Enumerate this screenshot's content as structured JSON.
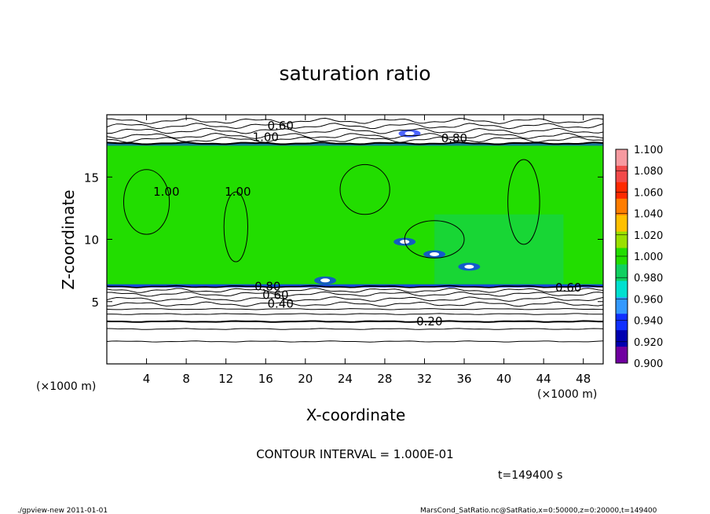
{
  "chart_data": {
    "type": "heatmap",
    "title": "saturation ratio",
    "xlabel": "X-coordinate",
    "ylabel": "Z-coordinate",
    "x_unit": "(×1000 m)",
    "y_unit": "(×1000 m)",
    "xlim": [
      0,
      50
    ],
    "ylim": [
      0,
      20
    ],
    "x_ticks": [
      "4",
      "8",
      "12",
      "16",
      "20",
      "24",
      "28",
      "32",
      "36",
      "40",
      "44",
      "48"
    ],
    "y_ticks": [
      "5",
      "10",
      "15"
    ],
    "colorbar": {
      "levels": [
        "1.100",
        "1.080",
        "1.060",
        "1.040",
        "1.020",
        "1.000",
        "0.980",
        "0.960",
        "0.940",
        "0.920",
        "0.900"
      ],
      "colors": [
        "#f79aa0",
        "#f24a4a",
        "#ff2a00",
        "#ff7d00",
        "#ffc000",
        "#9ae000",
        "#22dd00",
        "#10d060",
        "#00e0d0",
        "#3399ff",
        "#1030ff",
        "#0000b0",
        "#7000a0"
      ]
    },
    "cloud_layer": {
      "z_bottom": 6.2,
      "z_top": 17.7,
      "saturation": 1.0,
      "color": "#22dd00"
    },
    "contour_labels": [
      {
        "text": "0.60",
        "x": 17.5,
        "z": 18.8
      },
      {
        "text": "1.00",
        "x": 16.0,
        "z": 17.9
      },
      {
        "text": "0.80",
        "x": 35.0,
        "z": 17.8
      },
      {
        "text": "1.00",
        "x": 6.0,
        "z": 13.5
      },
      {
        "text": "1.00",
        "x": 13.2,
        "z": 13.5
      },
      {
        "text": "0.80",
        "x": 16.2,
        "z": 5.9
      },
      {
        "text": "0.60",
        "x": 17.0,
        "z": 5.2
      },
      {
        "text": "0.40",
        "x": 17.5,
        "z": 4.5
      },
      {
        "text": "0.60",
        "x": 46.5,
        "z": 5.8
      },
      {
        "text": "0.20",
        "x": 32.5,
        "z": 3.1
      }
    ],
    "contour_interval": "CONTOUR INTERVAL = 1.000E-01",
    "time": "t=149400 s"
  },
  "footer": {
    "left": "./gpview-new  2011-01-01",
    "right": "MarsCond_SatRatio.nc@SatRatio,x=0:50000,z=0:20000,t=149400"
  }
}
